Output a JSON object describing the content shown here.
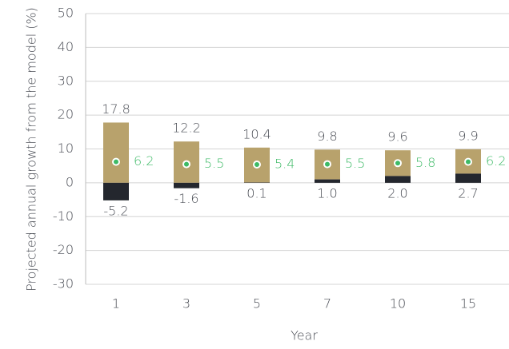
{
  "chart_data": {
    "type": "range",
    "ylabel": "Projected annual growth from the model (%)",
    "xlabel": "Year",
    "categories": [
      "1",
      "3",
      "5",
      "7",
      "10",
      "15"
    ],
    "series": [
      {
        "color": "#b8a26c",
        "values": [
          17.8,
          12.2,
          10.4,
          9.8,
          9.6,
          9.9
        ]
      },
      {
        "color": "#24272e",
        "values": [
          -5.2,
          -1.6,
          0.1,
          1.0,
          2.0,
          2.7
        ],
        "value_labels": [
          "-5.2",
          "-1.6",
          "0.1",
          "1.0",
          "2.0",
          "2.7"
        ]
      },
      {
        "color": "#3dba66",
        "values": [
          6.2,
          5.5,
          5.4,
          5.5,
          5.8,
          6.2
        ]
      }
    ],
    "ylim": [
      -30,
      50
    ],
    "yticks": [
      -30,
      -20,
      -10,
      0,
      10,
      20,
      30,
      40,
      50
    ],
    "grid": true
  }
}
